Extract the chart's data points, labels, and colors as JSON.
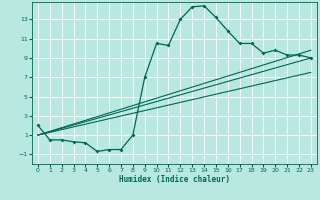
{
  "title": "",
  "xlabel": "Humidex (Indice chaleur)",
  "ylabel": "",
  "bg_color": "#b8e8e0",
  "line_color": "#006655",
  "grid_color": "#ffffff",
  "xlim": [
    -0.5,
    23.5
  ],
  "ylim": [
    -2.0,
    14.8
  ],
  "xticks": [
    0,
    1,
    2,
    3,
    4,
    5,
    6,
    7,
    8,
    9,
    10,
    11,
    12,
    13,
    14,
    15,
    16,
    17,
    18,
    19,
    20,
    21,
    22,
    23
  ],
  "yticks": [
    -1,
    1,
    3,
    5,
    7,
    9,
    11,
    13
  ],
  "main_x": [
    0,
    1,
    2,
    3,
    4,
    5,
    6,
    7,
    8,
    9,
    10,
    11,
    12,
    13,
    14,
    15,
    16,
    17,
    18,
    19,
    20,
    21,
    22,
    23
  ],
  "main_y": [
    2.0,
    0.5,
    0.5,
    0.3,
    0.2,
    -0.7,
    -0.5,
    -0.5,
    1.0,
    7.0,
    10.5,
    10.3,
    13.0,
    14.3,
    14.4,
    13.2,
    11.8,
    10.5,
    10.5,
    9.5,
    9.8,
    9.3,
    9.3,
    9.0
  ],
  "line1_x": [
    0,
    23
  ],
  "line1_y": [
    1.0,
    7.5
  ],
  "line2_x": [
    0,
    23
  ],
  "line2_y": [
    1.0,
    9.0
  ],
  "line3_x": [
    0,
    23
  ],
  "line3_y": [
    1.0,
    9.8
  ]
}
